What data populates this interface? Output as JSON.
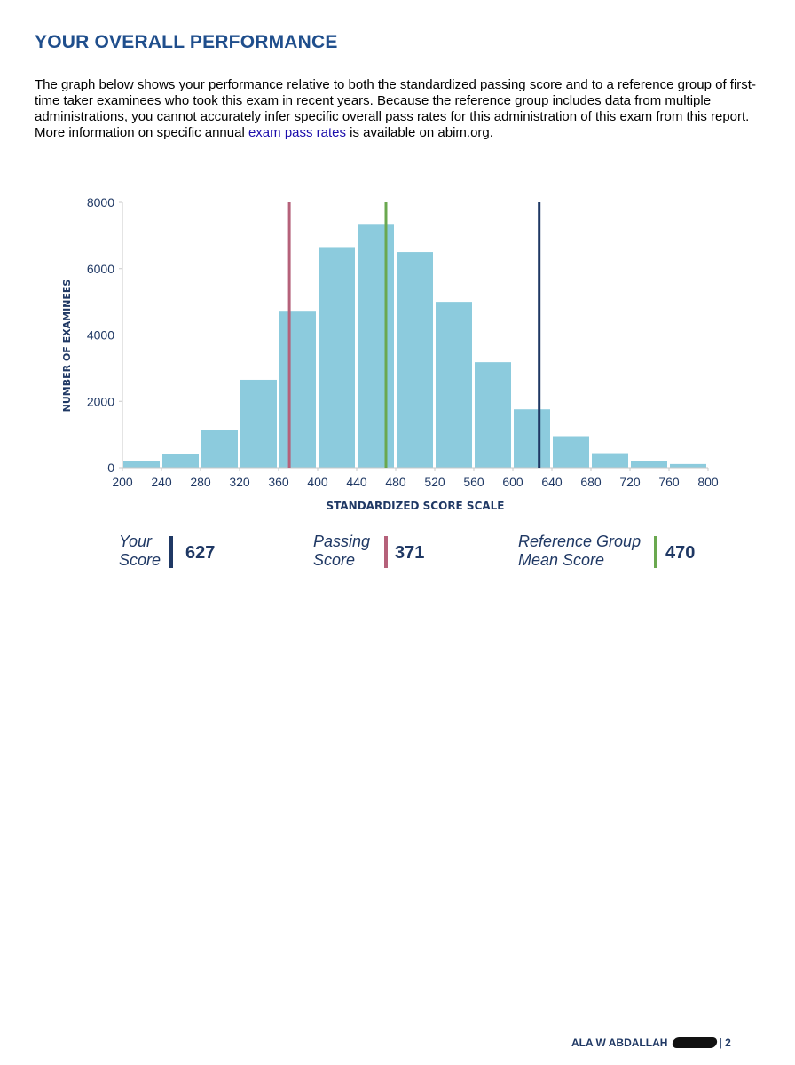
{
  "header": {
    "title": "YOUR OVERALL PERFORMANCE"
  },
  "intro": {
    "text_before_link": "The graph below shows your performance relative to both the standardized passing score and to a reference group of first-time taker examinees who took this exam in recent years. Because the reference group includes data from multiple administrations, you cannot accurately infer specific overall pass rates for this administration of this exam from this report. More information on specific annual ",
    "link_text": "exam pass rates",
    "text_after_link": " is available on abim.org."
  },
  "chart_data": {
    "type": "bar",
    "title": "",
    "xlabel": "STANDARDIZED SCORE SCALE",
    "ylabel": "NUMBER OF EXAMINEES",
    "xlim": [
      200,
      800
    ],
    "ylim": [
      0,
      8000
    ],
    "x_ticks": [
      200,
      240,
      280,
      320,
      360,
      400,
      440,
      480,
      520,
      560,
      600,
      640,
      680,
      720,
      760,
      800
    ],
    "y_ticks": [
      0,
      2000,
      4000,
      6000,
      8000
    ],
    "bin_width": 40,
    "bin_starts": [
      200,
      240,
      280,
      320,
      360,
      400,
      440,
      480,
      520,
      560,
      600,
      640,
      680,
      720,
      760
    ],
    "values": [
      200,
      420,
      1150,
      2650,
      4730,
      6650,
      7350,
      6500,
      5000,
      3180,
      1760,
      950,
      440,
      190,
      110
    ],
    "bar_color": "#8ccbdd",
    "reference_lines": [
      {
        "name": "Passing Score",
        "value": 371,
        "color": "#b5617a"
      },
      {
        "name": "Reference Group Mean Score",
        "value": 470,
        "color": "#6aa84f"
      },
      {
        "name": "Your Score",
        "value": 627,
        "color": "#1f3864"
      }
    ]
  },
  "legend": {
    "your_score": {
      "label_line1": "Your",
      "label_line2": "Score",
      "value": "627",
      "color": "#1f3864"
    },
    "passing_score": {
      "label_line1": "Passing",
      "label_line2": "Score",
      "value": "371",
      "color": "#b5617a"
    },
    "reference_mean": {
      "label_line1": "Reference Group",
      "label_line2": " Mean Score",
      "value": "470",
      "color": "#6aa84f"
    }
  },
  "footer": {
    "name": "ALA W ABDALLAH",
    "separator": "|",
    "page_number": "2"
  }
}
